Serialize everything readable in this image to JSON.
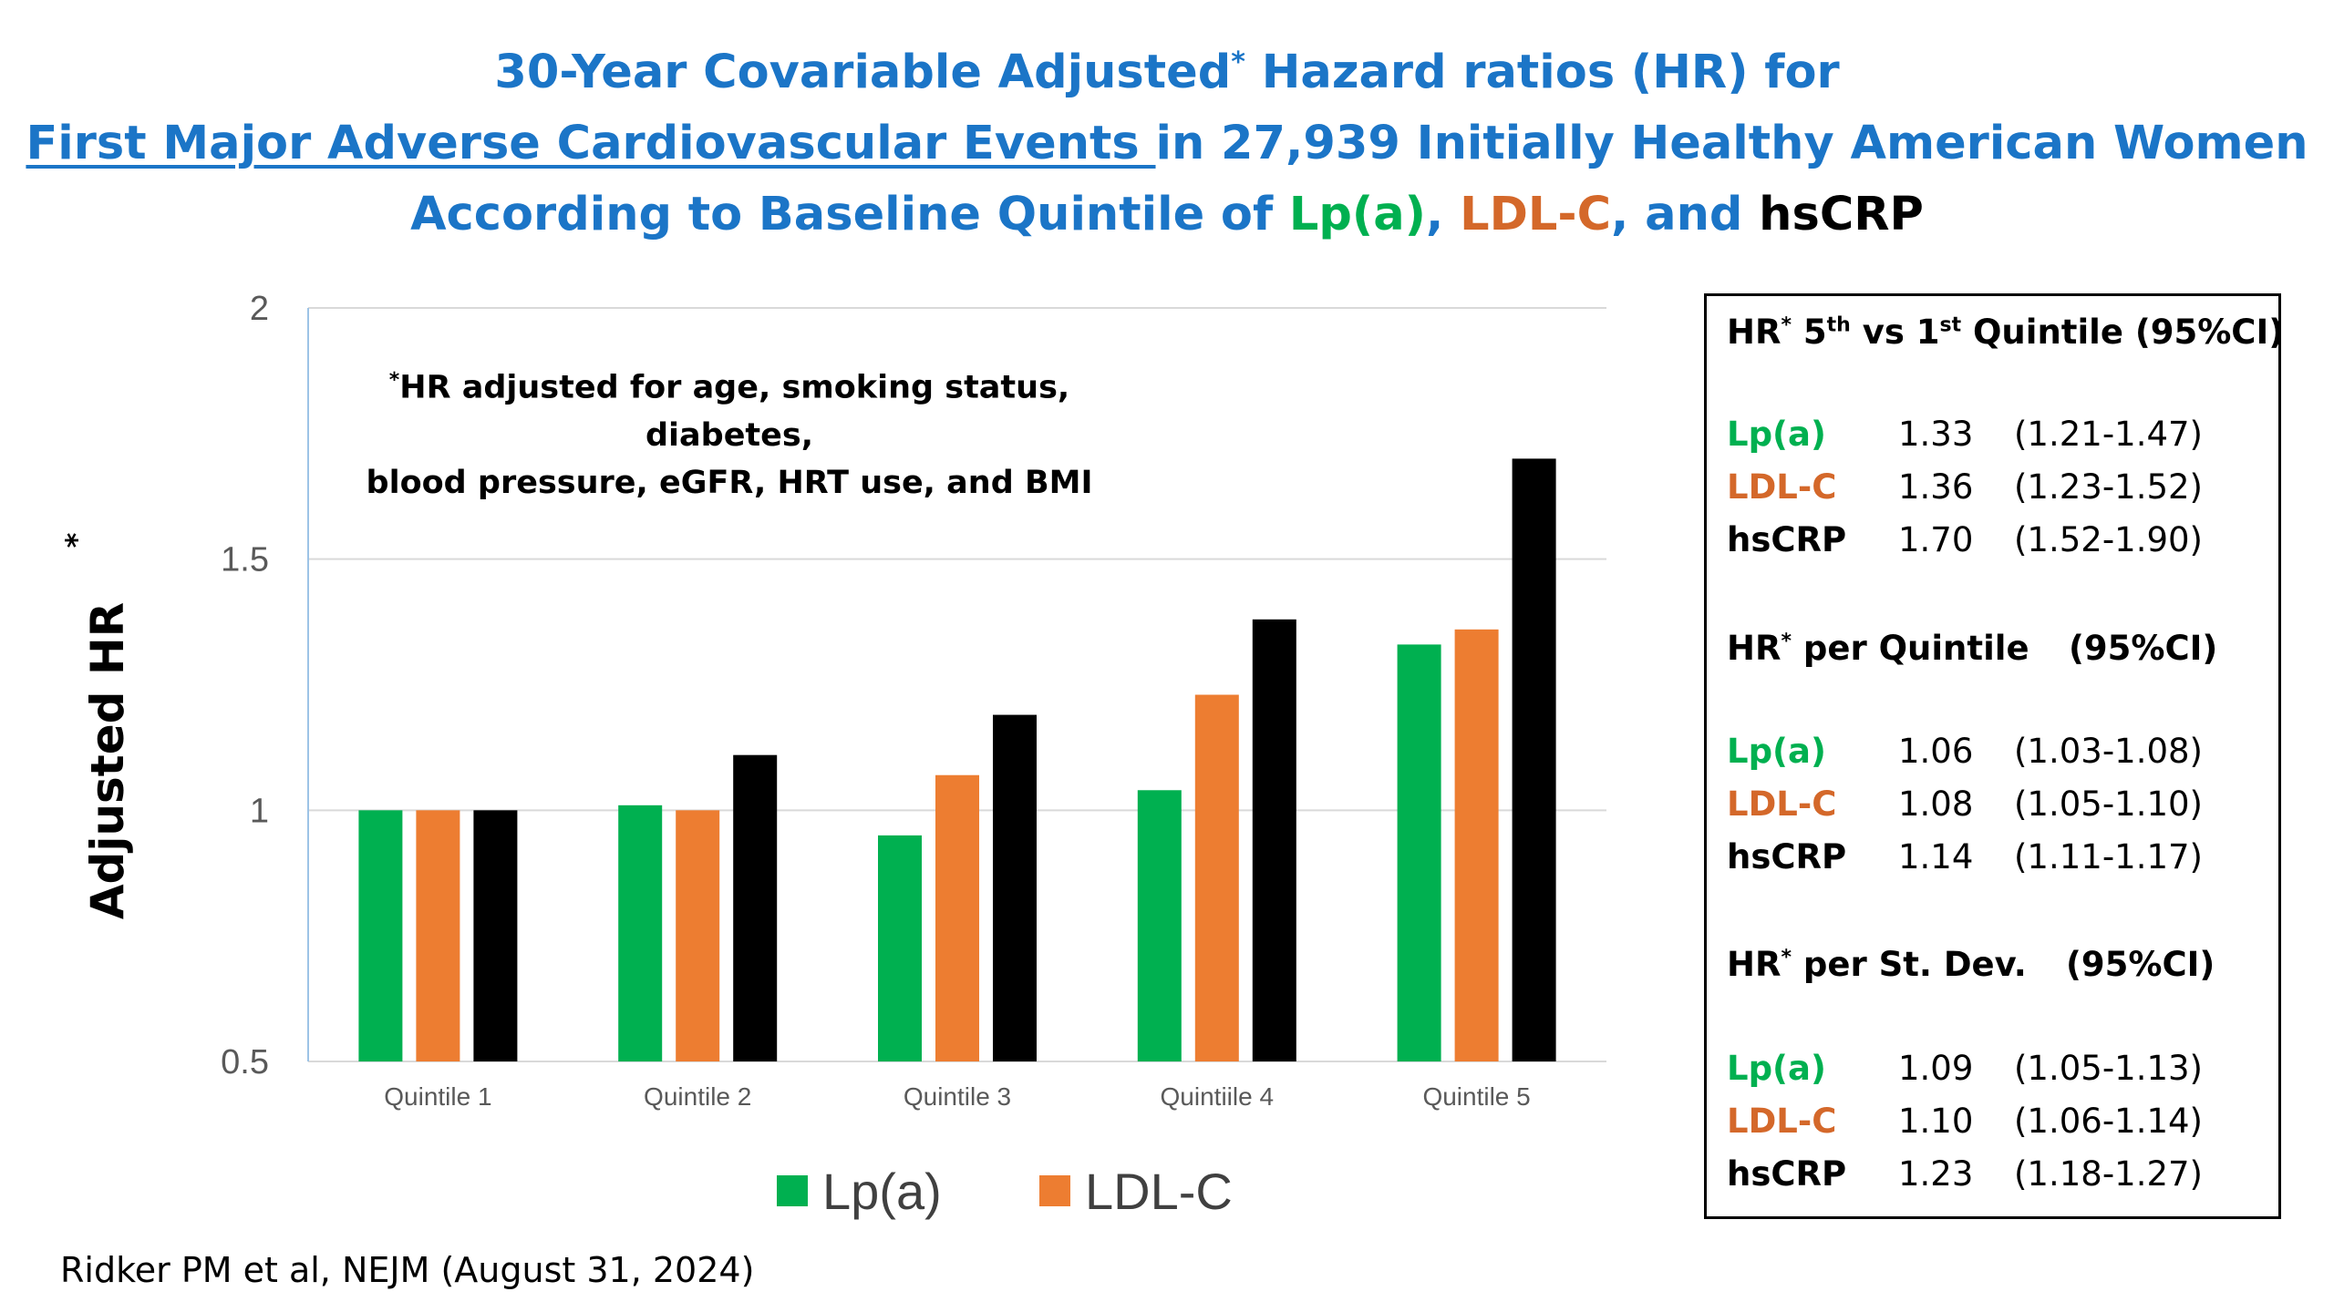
{
  "title": {
    "line1_pre": "30-Year Covariable Adjusted",
    "line1_sup": "*",
    "line1_post": " Hazard ratios (HR) for",
    "line2_underlined": "First Major Adverse Cardiovascular Events ",
    "line2_rest": "in 27,939 Initially Healthy American Women",
    "line3_pre": "According to Baseline Quintile of ",
    "line3_lpa": "Lp(a)",
    "line3_comma": ", ",
    "line3_ldl": "LDL-C",
    "line3_and": ", and ",
    "line3_hs": "hsCRP"
  },
  "note": {
    "sup": "*",
    "line1": "HR adjusted for age, smoking status, diabetes,",
    "line2": "blood pressure, eGFR, HRT use, and BMI"
  },
  "colors": {
    "lpa": "#00b050",
    "ldl": "#ed7d31",
    "hscrp": "#000000",
    "title": "#1b75c7"
  },
  "chart_data": {
    "type": "bar",
    "categories": [
      "Quintile 1",
      "Quintile 2",
      "Quintile 3",
      "Quintiile 4",
      "Quintile 5"
    ],
    "series": [
      {
        "name": "Lp(a)",
        "values": [
          1.0,
          1.01,
          0.95,
          1.04,
          1.33
        ]
      },
      {
        "name": "LDL-C",
        "values": [
          1.0,
          1.0,
          1.07,
          1.23,
          1.36
        ]
      },
      {
        "values": [
          1.0,
          1.11,
          1.19,
          1.38,
          1.7
        ]
      }
    ],
    "ylabel": "Adjusted HR",
    "ylabel_sup": "*",
    "ylim": [
      0.5,
      2
    ],
    "yticks": [
      "0.5",
      "1",
      "1.5",
      "2"
    ],
    "grid": true,
    "legend": "bottom"
  },
  "panel": {
    "sections": [
      {
        "head_pre": "HR",
        "head_sup": "*",
        "head_mid": " 5",
        "head_sup2": "th",
        "head_mid2": " vs 1",
        "head_sup3": "st",
        "head_post": " Quintile (95%CI)",
        "rows": [
          {
            "label": "Lp(a)",
            "value": "1.33",
            "ci": "(1.21-1.47)"
          },
          {
            "label": "LDL-C",
            "value": "1.36",
            "ci": "(1.23-1.52)"
          },
          {
            "label": "hsCRP",
            "value": "1.70",
            "ci": "(1.52-1.90)"
          }
        ]
      },
      {
        "head_pre": "HR",
        "head_sup": "*",
        "head_post": " per Quintile",
        "head_ci": "(95%CI)",
        "rows": [
          {
            "label": "Lp(a)",
            "value": "1.06",
            "ci": "(1.03-1.08)"
          },
          {
            "label": "LDL-C",
            "value": "1.08",
            "ci": "(1.05-1.10)"
          },
          {
            "label": "hsCRP",
            "value": "1.14",
            "ci": "(1.11-1.17)"
          }
        ]
      },
      {
        "head_pre": "HR",
        "head_sup": "*",
        "head_post": " per St. Dev.",
        "head_ci": "(95%CI)",
        "rows": [
          {
            "label": "Lp(a)",
            "value": "1.09",
            "ci": "(1.05-1.13)"
          },
          {
            "label": "LDL-C",
            "value": "1.10",
            "ci": "(1.06-1.14)"
          },
          {
            "label": "hsCRP",
            "value": "1.23",
            "ci": "(1.18-1.27)"
          }
        ]
      }
    ]
  },
  "source": "Ridker PM et al, NEJM (August 31, 2024)"
}
